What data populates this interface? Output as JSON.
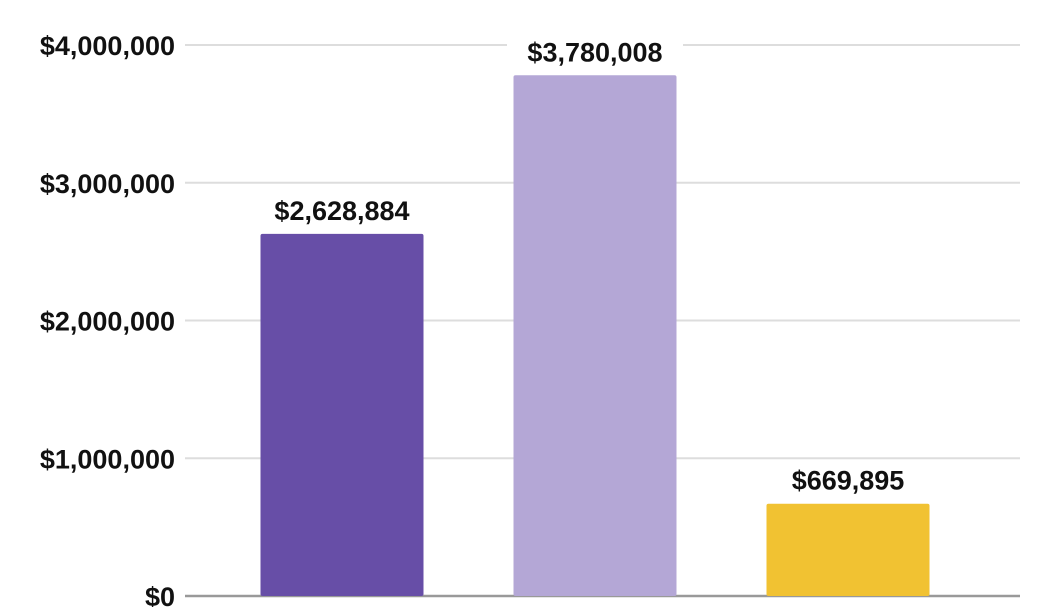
{
  "chart_data": {
    "type": "bar",
    "title": "",
    "xlabel": "",
    "ylabel": "",
    "ylim": [
      0,
      4000000
    ],
    "grid": true,
    "legend": "none",
    "categories": [
      "",
      "",
      ""
    ],
    "values": [
      2628884,
      3780008,
      669895
    ],
    "data_labels": [
      "$2,628,884",
      "$3,780,008",
      "$669,895"
    ],
    "colors": [
      "#674ea7",
      "#b4a7d6",
      "#f1c232"
    ],
    "yticks": [
      0,
      1000000,
      2000000,
      3000000,
      4000000
    ],
    "ytick_labels": [
      "$0",
      "$1,000,000",
      "$2,000,000",
      "$3,000,000",
      "$4,000,000"
    ],
    "grid_color": "#dddddd",
    "axis_color": "#999999"
  }
}
